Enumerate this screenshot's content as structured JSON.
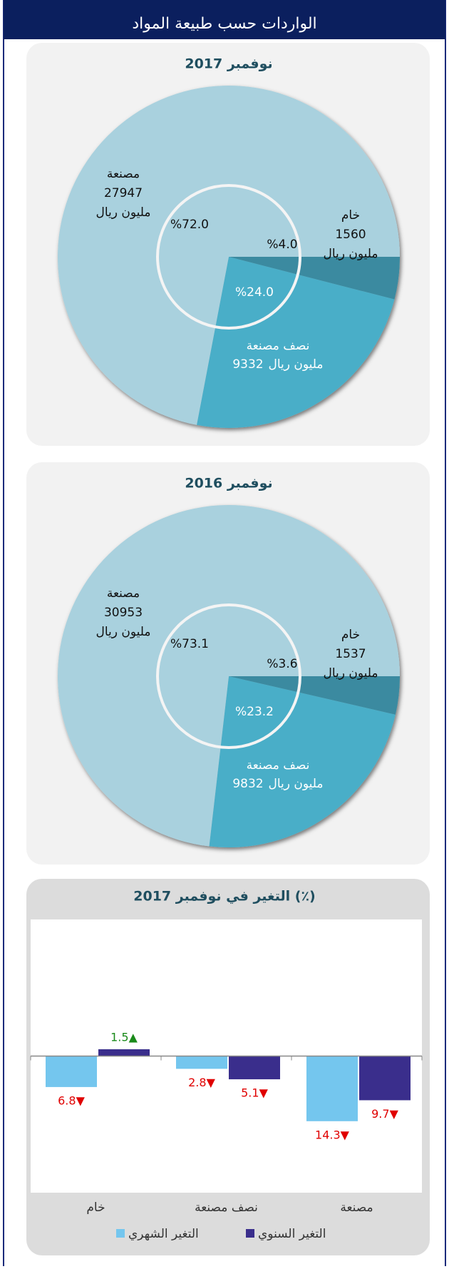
{
  "header": {
    "title": "الواردات حسب طبيعة المواد"
  },
  "chart_data": [
    {
      "type": "pie",
      "title": "نوفمبر 2017",
      "categories": [
        "خام",
        "نصف مصنعة",
        "مصنعة"
      ],
      "values": [
        4.0,
        24.0,
        72.0
      ],
      "value_labels": [
        "%4.0",
        "%24.0",
        "%72.0"
      ],
      "amounts": [
        1560,
        9332,
        27947
      ],
      "unit": "مليون ريال",
      "colors": [
        "#3b8aa0",
        "#4aaec8",
        "#a9d1de"
      ]
    },
    {
      "type": "pie",
      "title": "نوفمبر 2016",
      "categories": [
        "خام",
        "نصف مصنعة",
        "مصنعة"
      ],
      "values": [
        3.6,
        23.2,
        73.1
      ],
      "value_labels": [
        "%3.6",
        "%23.2",
        "%73.1"
      ],
      "amounts": [
        1537,
        9832,
        30953
      ],
      "unit": "مليون ريال",
      "colors": [
        "#3b8aa0",
        "#4aaec8",
        "#a9d1de"
      ]
    },
    {
      "type": "bar",
      "title": "التغير في نوفمبر 2017 (٪)",
      "categories": [
        "خام",
        "نصف مصنعة",
        "مصنعة"
      ],
      "series": [
        {
          "name": "التغير الشهري",
          "color": "#74c6ee",
          "values": [
            -6.8,
            -2.8,
            -14.3
          ],
          "value_labels": [
            "6.8▼",
            "2.8▼",
            "14.3▼"
          ]
        },
        {
          "name": "التغير السنوي",
          "color": "#3a2e8c",
          "values": [
            1.5,
            -5.1,
            -9.7
          ],
          "value_labels": [
            "1.5▲",
            "5.1▼",
            "9.7▼"
          ]
        }
      ],
      "ylim": [
        -30,
        30
      ]
    }
  ]
}
